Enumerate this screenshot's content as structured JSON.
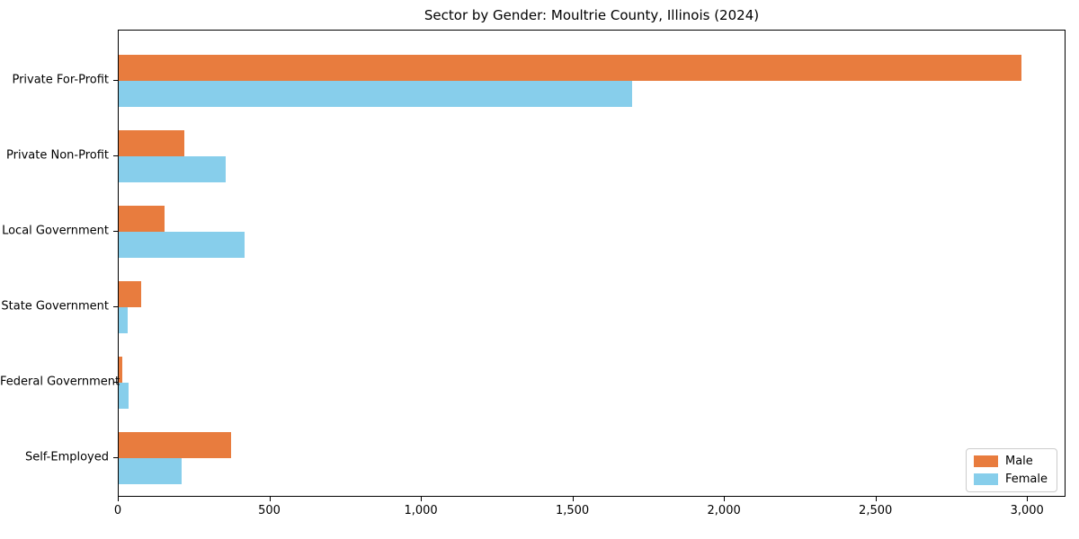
{
  "chart_data": {
    "type": "bar",
    "orientation": "horizontal",
    "title": "Sector by Gender: Moultrie County, Illinois (2024)",
    "categories": [
      "Private For-Profit",
      "Private Non-Profit",
      "Local Government",
      "State Government",
      "Federal Government",
      "Self-Employed"
    ],
    "series": [
      {
        "name": "Male",
        "color": "#e87c3e",
        "values": [
          2978,
          217,
          151,
          74,
          12,
          371
        ]
      },
      {
        "name": "Female",
        "color": "#87ceeb",
        "values": [
          1694,
          353,
          415,
          30,
          32,
          208
        ]
      }
    ],
    "xlabel": "",
    "ylabel": "",
    "xlim": [
      0,
      3127
    ],
    "xticks": [
      0,
      500,
      1000,
      1500,
      2000,
      2500,
      3000
    ],
    "xtick_labels": [
      "0",
      "500",
      "1,000",
      "1,500",
      "2,000",
      "2,500",
      "3,000"
    ],
    "grid": false,
    "legend_position": "lower right",
    "colors": {
      "male": "#e87c3e",
      "female": "#87ceeb",
      "spine": "#000000",
      "background": "#ffffff"
    }
  }
}
